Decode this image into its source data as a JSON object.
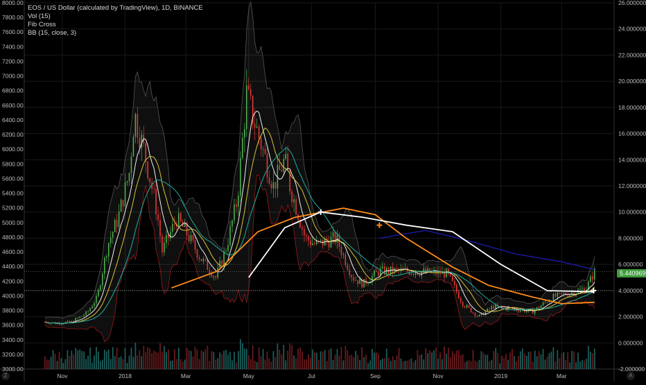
{
  "legend": {
    "symbol_line": "EOS / US Dollar (calculated by TradingView), 1D, BINANCE",
    "indicators": [
      "Vol (15)",
      "Fib Cross",
      "BB (15, close, 3)"
    ]
  },
  "price_tag": "5.440969",
  "corner_left": "Z",
  "corner_right": "A",
  "colors": {
    "background": "#000000",
    "up": "#4caf50",
    "down": "#e53935",
    "ma_orange": "#ff8c1a",
    "ma_white": "#ffffff",
    "ma_navy": "#1a1aa0",
    "ma_yellow": "#d8c63a",
    "ma_teal": "#1fb0a0",
    "bb": "#9a1a1a",
    "grid": "#1a1a1a"
  },
  "chart_data": {
    "type": "candlestick",
    "left_axis": {
      "ticks": [
        "8000.00",
        "7800.00",
        "7600.00",
        "7400.00",
        "7200.00",
        "7000.00",
        "6800.00",
        "6600.00",
        "6400.00",
        "6200.00",
        "6000.00",
        "5800.00",
        "5600.00",
        "5400.00",
        "5200.00",
        "5000.00",
        "4800.00",
        "4600.00",
        "4400.00",
        "4200.00",
        "4000.00",
        "3800.00",
        "3600.00",
        "3400.00",
        "3200.00",
        "3000.00"
      ],
      "range": [
        3000,
        8000
      ]
    },
    "right_axis": {
      "ticks": [
        "26.000000",
        "24.000000",
        "22.000000",
        "20.000000",
        "18.000000",
        "16.000000",
        "14.000000",
        "12.000000",
        "10.000000",
        "8.000000",
        "6.000000",
        "4.000000",
        "2.000000",
        "0.000000",
        "-2.000000"
      ],
      "range": [
        -2,
        26
      ]
    },
    "x_labels": [
      "Nov",
      "2018",
      "Mar",
      "May",
      "Jul",
      "Sep",
      "Nov",
      "2019",
      "Mar"
    ],
    "last_price": 5.440969,
    "price_path": [
      [
        "2017-10-15",
        1.6
      ],
      [
        "2017-10-25",
        1.5
      ],
      [
        "2017-11-10",
        1.6
      ],
      [
        "2017-11-25",
        2.3
      ],
      [
        "2017-12-05",
        3.5
      ],
      [
        "2017-12-15",
        7.5
      ],
      [
        "2017-12-25",
        9.5
      ],
      [
        "2018-01-05",
        13.0
      ],
      [
        "2018-01-10",
        17.5
      ],
      [
        "2018-01-20",
        14.5
      ],
      [
        "2018-02-01",
        10.0
      ],
      [
        "2018-02-06",
        7.0
      ],
      [
        "2018-02-20",
        9.5
      ],
      [
        "2018-03-01",
        8.5
      ],
      [
        "2018-03-15",
        6.5
      ],
      [
        "2018-03-30",
        5.0
      ],
      [
        "2018-04-10",
        7.5
      ],
      [
        "2018-04-20",
        11.0
      ],
      [
        "2018-04-29",
        19.0
      ],
      [
        "2018-05-10",
        16.0
      ],
      [
        "2018-05-25",
        12.0
      ],
      [
        "2018-06-05",
        14.0
      ],
      [
        "2018-06-10",
        12.0
      ],
      [
        "2018-06-25",
        8.0
      ],
      [
        "2018-07-05",
        7.5
      ],
      [
        "2018-07-25",
        8.0
      ],
      [
        "2018-08-10",
        5.0
      ],
      [
        "2018-08-20",
        4.5
      ],
      [
        "2018-09-05",
        5.5
      ],
      [
        "2018-10-01",
        5.5
      ],
      [
        "2018-11-10",
        5.3
      ],
      [
        "2018-11-25",
        3.0
      ],
      [
        "2018-12-10",
        2.0
      ],
      [
        "2018-12-25",
        2.8
      ],
      [
        "2019-01-10",
        2.6
      ],
      [
        "2019-02-01",
        2.4
      ],
      [
        "2019-02-20",
        3.5
      ],
      [
        "2019-03-10",
        3.8
      ],
      [
        "2019-03-25",
        4.2
      ],
      [
        "2019-04-02",
        5.44
      ]
    ],
    "ma_orange": [
      [
        "2018-02-15",
        4.2
      ],
      [
        "2018-04-01",
        5.5
      ],
      [
        "2018-05-10",
        8.5
      ],
      [
        "2018-06-15",
        9.6
      ],
      [
        "2018-08-01",
        10.3
      ],
      [
        "2018-09-01",
        9.8
      ],
      [
        "2018-10-01",
        8.0
      ],
      [
        "2018-11-15",
        5.8
      ],
      [
        "2018-12-20",
        4.4
      ],
      [
        "2019-02-01",
        3.5
      ],
      [
        "2019-03-01",
        3.0
      ],
      [
        "2019-04-02",
        3.1
      ]
    ],
    "ma_white": [
      [
        "2018-05-01",
        5.0
      ],
      [
        "2018-06-05",
        8.8
      ],
      [
        "2018-07-10",
        10.0
      ],
      [
        "2018-08-20",
        9.6
      ],
      [
        "2018-10-01",
        9.0
      ],
      [
        "2018-11-15",
        8.5
      ],
      [
        "2019-01-01",
        6.0
      ],
      [
        "2019-02-15",
        4.0
      ],
      [
        "2019-04-02",
        3.9
      ]
    ],
    "ma_navy": [
      [
        "2018-09-05",
        8.0
      ],
      [
        "2018-10-20",
        8.6
      ],
      [
        "2018-12-01",
        7.8
      ],
      [
        "2019-01-15",
        6.8
      ],
      [
        "2019-03-01",
        6.2
      ],
      [
        "2019-04-02",
        5.6
      ]
    ],
    "cross_markers": [
      {
        "date": "2018-07-10",
        "value": 10.0,
        "color": "#ffffff"
      },
      {
        "date": "2018-09-05",
        "value": 9.0,
        "color": "#ff8c1a"
      },
      {
        "date": "2019-04-01",
        "value": 4.0,
        "color": "#ffffff"
      }
    ]
  }
}
